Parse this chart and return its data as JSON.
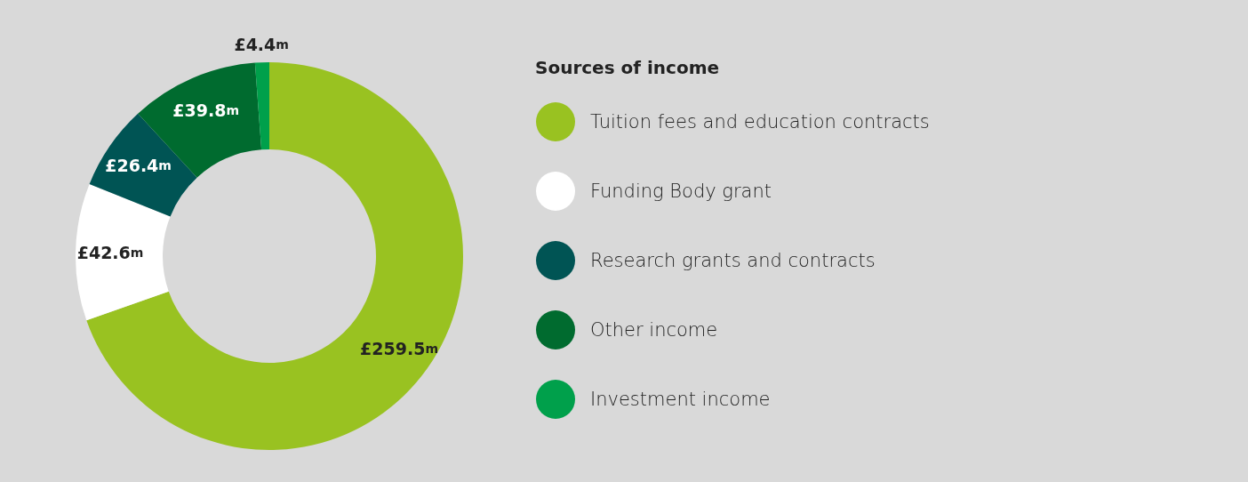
{
  "chart_data": {
    "type": "donut",
    "legend_title": "Sources of income",
    "legend": "right",
    "categories": [
      "Tuition fees and education contracts",
      "Funding Body grant",
      "Research grants and contracts",
      "Other income",
      "Investment income"
    ],
    "values": [
      259.5,
      42.6,
      26.4,
      39.8,
      4.4
    ],
    "colors": [
      "#99c221",
      "#ffffff",
      "#005454",
      "#006b2f",
      "#00a04b"
    ],
    "value_labels": [
      "£259.5m",
      "£42.6m",
      "£26.4m",
      "£39.8m",
      "£4.4m"
    ]
  }
}
